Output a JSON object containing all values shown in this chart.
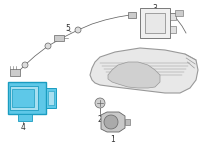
{
  "bg_color": "#ffffff",
  "line_color": "#666666",
  "radar_fill": "#5ec8e8",
  "radar_edge": "#1a9cc0",
  "radar_inner": "#a8dff0",
  "bumper_fill": "#e8e8e8",
  "bumper_stroke": "#999999",
  "label_color": "#333333",
  "label_fontsize": 5.5,
  "lw": 0.55
}
